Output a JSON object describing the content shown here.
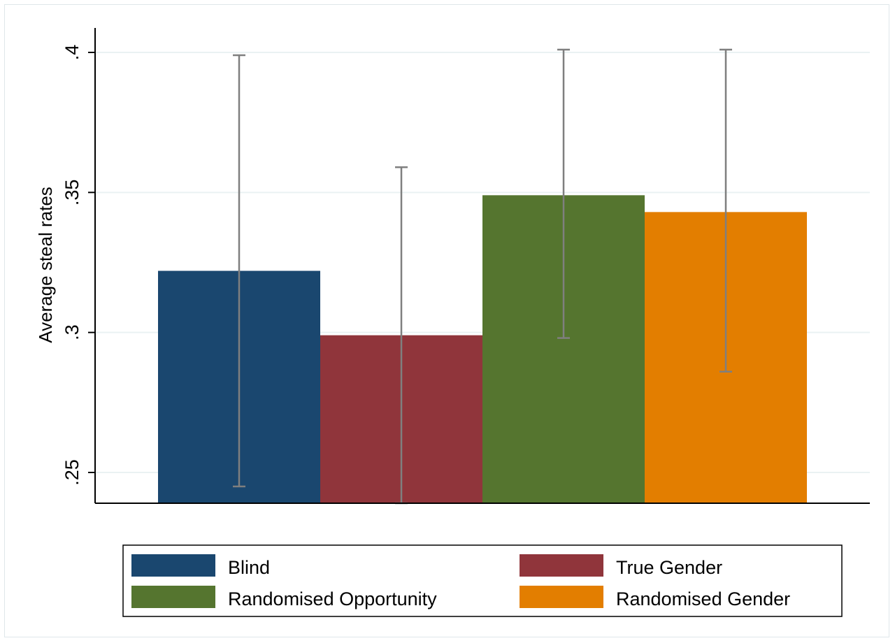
{
  "chart_data": {
    "type": "bar",
    "title": "",
    "xlabel": "",
    "ylabel": "Average steal rates",
    "ylim": [
      0.239,
      0.41
    ],
    "yticks": [
      {
        "value": 0.25,
        "label": ".25"
      },
      {
        "value": 0.3,
        "label": ".3"
      },
      {
        "value": 0.35,
        "label": ".35"
      },
      {
        "value": 0.4,
        "label": ".4"
      }
    ],
    "grid": true,
    "legend_position": "bottom",
    "series": [
      {
        "name": "Blind",
        "value": 0.322,
        "ci_low": 0.245,
        "ci_high": 0.399,
        "color": "#1a476f"
      },
      {
        "name": "True Gender",
        "value": 0.299,
        "ci_low": 0.239,
        "ci_high": 0.359,
        "color": "#90353b"
      },
      {
        "name": "Randomised Opportunity",
        "value": 0.349,
        "ci_low": 0.298,
        "ci_high": 0.401,
        "color": "#55752f"
      },
      {
        "name": "Randomised Gender",
        "value": 0.343,
        "ci_low": 0.286,
        "ci_high": 0.401,
        "color": "#e37e00"
      }
    ],
    "colors": {
      "grid": "#eaf2f3",
      "errorbar": "#7f7f7f",
      "axis": "#000000"
    }
  }
}
